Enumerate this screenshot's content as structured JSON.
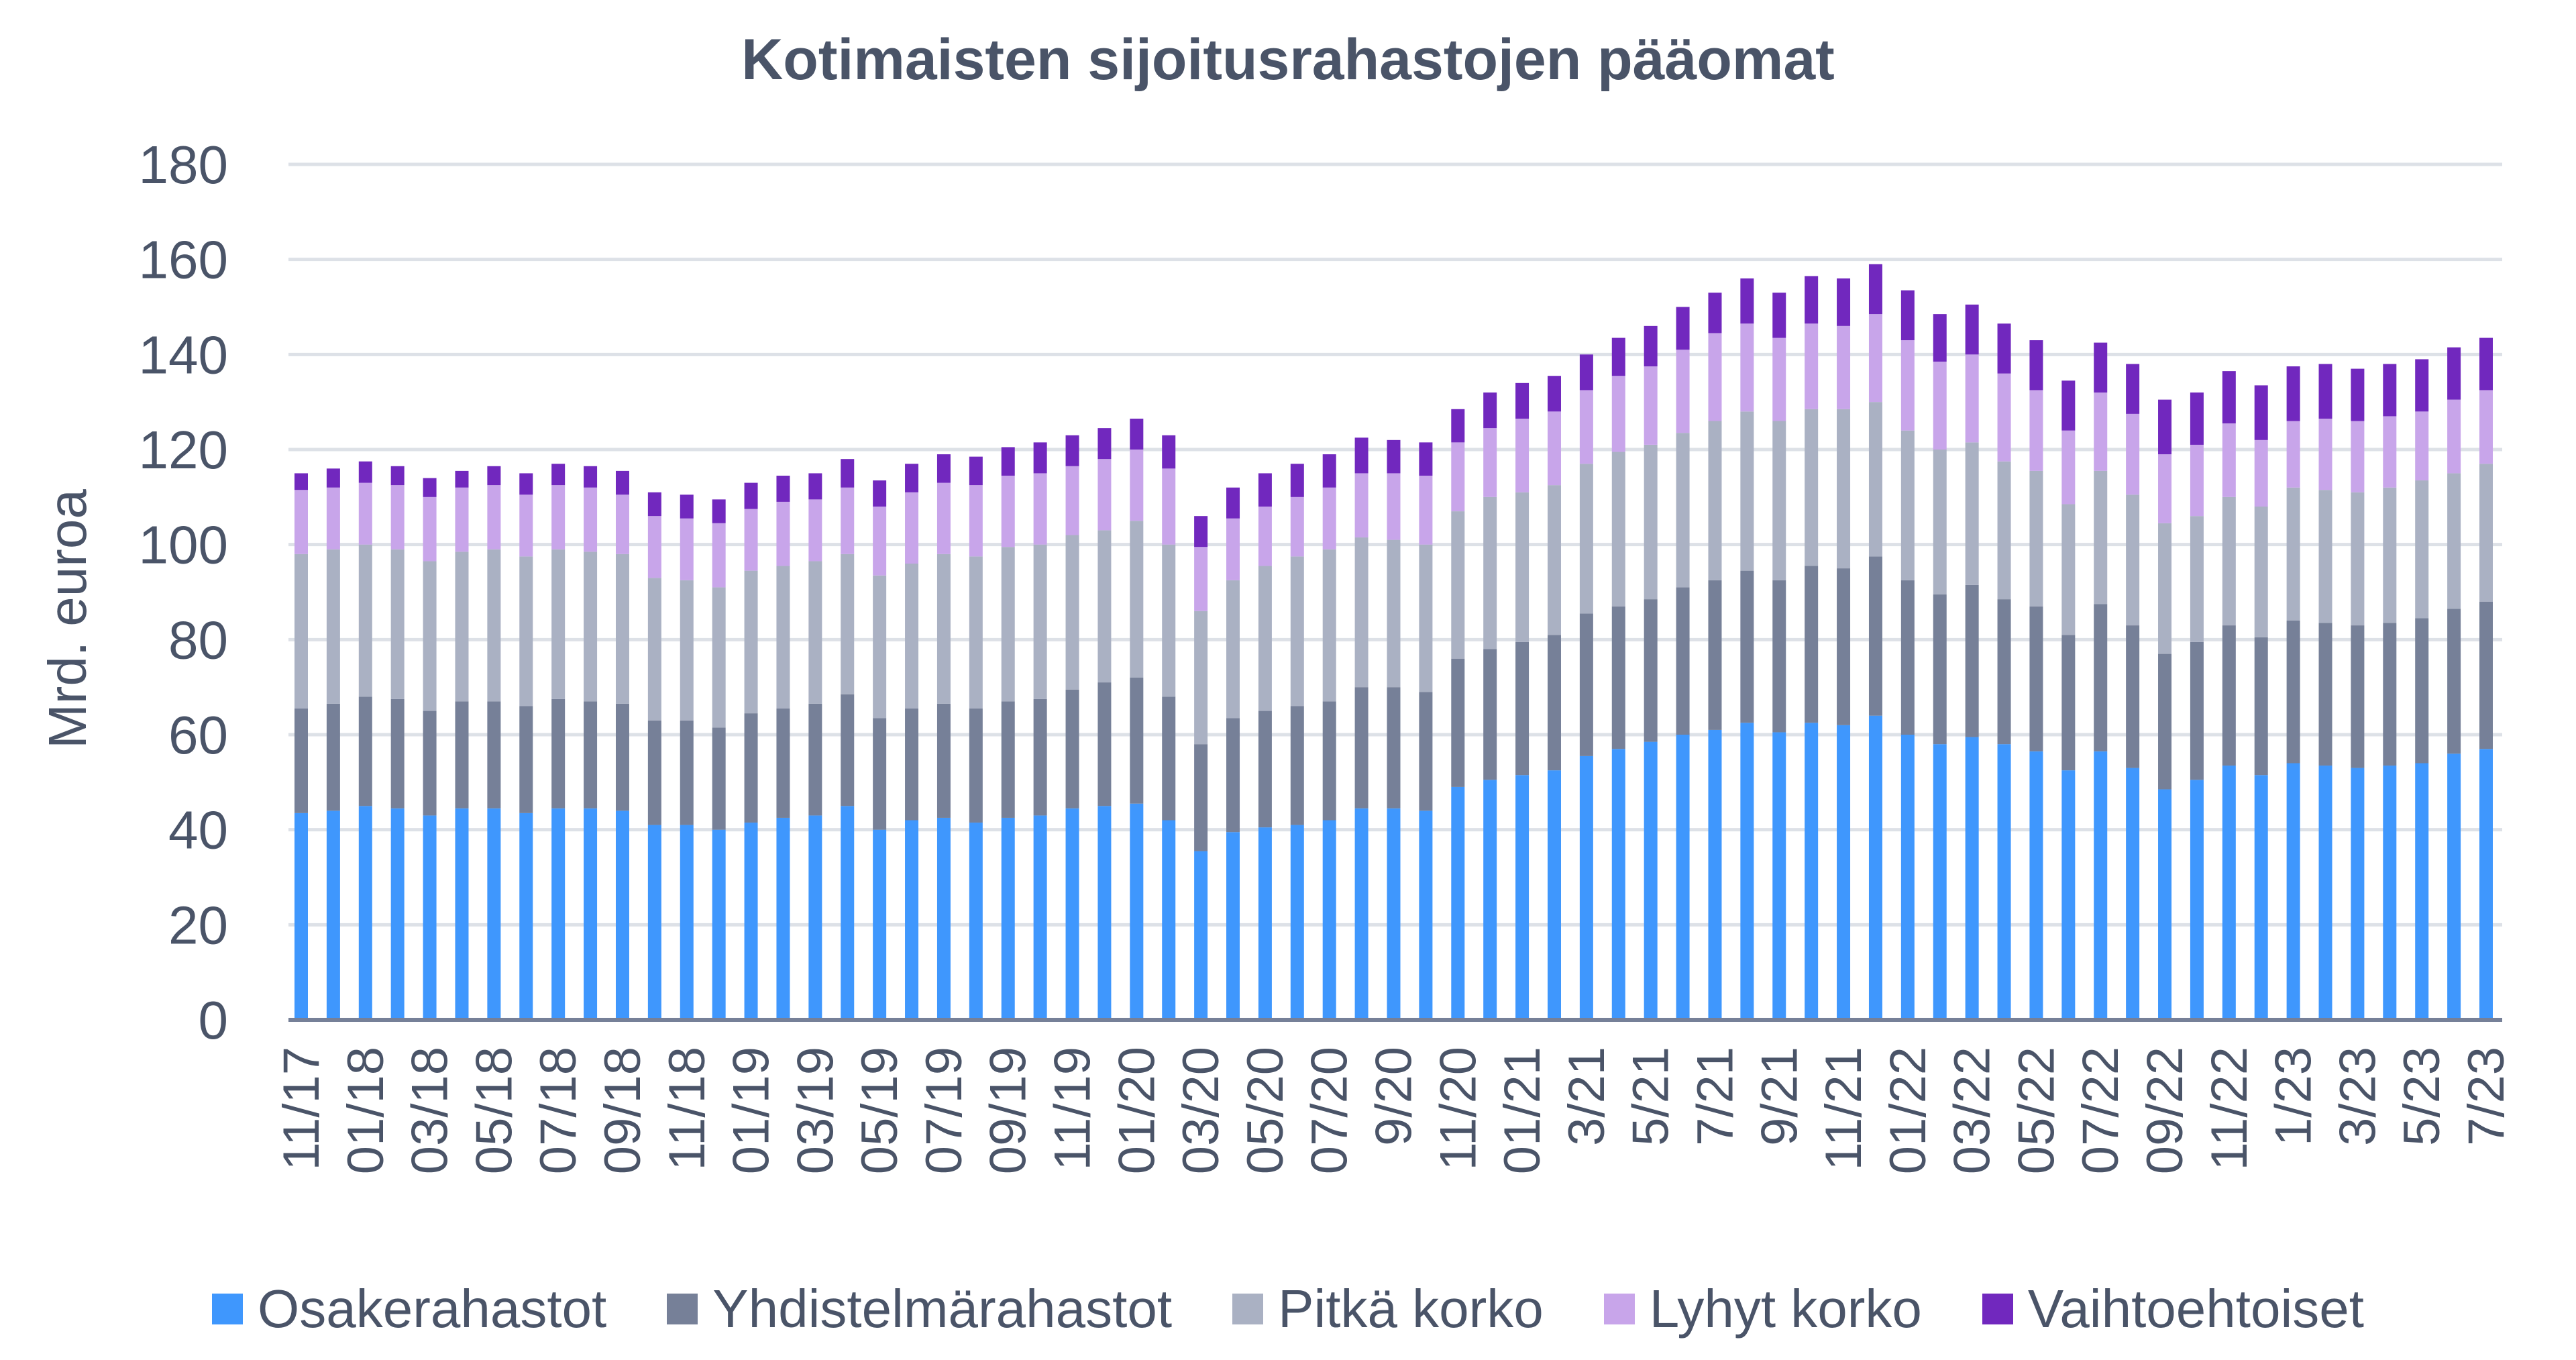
{
  "chart_data": {
    "type": "bar",
    "stacked": true,
    "title": "Kotimaisten sijoitusrahastojen pääomat",
    "xlabel": "",
    "ylabel": "Mrd. euroa",
    "ylim": [
      0,
      180
    ],
    "yticks": [
      0,
      20,
      40,
      60,
      80,
      100,
      120,
      140,
      160,
      180
    ],
    "grid": true,
    "legend_position": "bottom",
    "categories": [
      "11/17",
      "12/17",
      "01/18",
      "02/18",
      "03/18",
      "04/18",
      "05/18",
      "06/18",
      "07/18",
      "08/18",
      "09/18",
      "10/18",
      "11/18",
      "12/18",
      "01/19",
      "02/19",
      "03/19",
      "04/19",
      "05/19",
      "06/19",
      "07/19",
      "08/19",
      "09/19",
      "10/19",
      "11/19",
      "12/19",
      "01/20",
      "02/20",
      "03/20",
      "04/20",
      "05/20",
      "06/20",
      "07/20",
      "08/20",
      "9/20",
      "10/20",
      "11/20",
      "12/20",
      "01/21",
      "02/21",
      "3/21",
      "4/21",
      "5/21",
      "6/21",
      "7/21",
      "8/21",
      "9/21",
      "10/21",
      "11/21",
      "12/21",
      "01/22",
      "02/22",
      "03/22",
      "04/22",
      "05/22",
      "06/22",
      "07/22",
      "08/22",
      "09/22",
      "10/22",
      "11/22",
      "12/22",
      "1/23",
      "2/23",
      "3/23",
      "4/23",
      "5/23",
      "6/23",
      "7/23"
    ],
    "tick_labels": [
      "11/17",
      "01/18",
      "03/18",
      "05/18",
      "07/18",
      "09/18",
      "11/18",
      "01/19",
      "03/19",
      "05/19",
      "07/19",
      "09/19",
      "11/19",
      "01/20",
      "03/20",
      "05/20",
      "07/20",
      "9/20",
      "11/20",
      "01/21",
      "3/21",
      "5/21",
      "7/21",
      "9/21",
      "11/21",
      "01/22",
      "03/22",
      "05/22",
      "07/22",
      "09/22",
      "11/22",
      "1/23",
      "3/23",
      "5/23",
      "7/23"
    ],
    "series": [
      {
        "name": "Osakerahastot",
        "color": "#3f97fd",
        "values": [
          43.5,
          44,
          45,
          44.5,
          43,
          44.5,
          44.5,
          43.5,
          44.5,
          44.5,
          44,
          41,
          41,
          40,
          41.5,
          42.5,
          43,
          45,
          40,
          42,
          42.5,
          41.5,
          42.5,
          43,
          44.5,
          45,
          45.5,
          42,
          35.5,
          39.5,
          40.5,
          41,
          42,
          44.5,
          44.5,
          44,
          49,
          50.5,
          51.5,
          52.5,
          55.5,
          57,
          58.5,
          60,
          61,
          62.5,
          60.5,
          62.5,
          62,
          64,
          60,
          58,
          59.5,
          58,
          56.5,
          52.5,
          56.5,
          53,
          48.5,
          50.5,
          53.5,
          51.5,
          54,
          53.5,
          53,
          53.5,
          54,
          56,
          57
        ]
      },
      {
        "name": "Yhdistelmärahastot",
        "color": "#768098",
        "values": [
          22,
          22.5,
          23,
          23,
          22,
          22.5,
          22.5,
          22.5,
          23,
          22.5,
          22.5,
          22,
          22,
          21.5,
          23,
          23,
          23.5,
          23.5,
          23.5,
          23.5,
          24,
          24,
          24.5,
          24.5,
          25,
          26,
          26.5,
          26,
          22.5,
          24,
          24.5,
          25,
          25,
          25.5,
          25.5,
          25,
          27,
          27.5,
          28,
          28.5,
          30,
          30,
          30,
          31,
          31.5,
          32,
          32,
          33,
          33,
          33.5,
          32.5,
          31.5,
          32,
          30.5,
          30.5,
          28.5,
          31,
          30,
          28.5,
          29,
          29.5,
          29,
          30,
          30,
          30,
          30,
          30.5,
          30.5,
          31
        ]
      },
      {
        "name": "Pitkä korko",
        "color": "#aab1c3",
        "values": [
          32.5,
          32.5,
          32,
          31.5,
          31.5,
          31.5,
          32,
          31.5,
          31.5,
          31.5,
          31.5,
          30,
          29.5,
          29.5,
          30,
          30,
          30,
          29.5,
          30,
          30.5,
          31.5,
          32,
          32.5,
          32.5,
          32.5,
          32,
          33,
          32,
          28,
          29,
          30.5,
          31.5,
          32,
          31.5,
          31,
          31,
          31,
          32,
          31.5,
          31.5,
          31.5,
          32.5,
          32.5,
          32.5,
          33.5,
          33.5,
          33.5,
          33,
          33.5,
          32.5,
          31.5,
          30.5,
          30,
          29,
          28.5,
          27.5,
          28,
          27.5,
          27.5,
          26.5,
          27,
          27.5,
          28,
          28,
          28,
          28.5,
          29,
          28.5,
          29
        ]
      },
      {
        "name": "Lyhyt korko",
        "color": "#c8a5ea",
        "values": [
          13.5,
          13,
          13,
          13.5,
          13.5,
          13.5,
          13.5,
          13,
          13.5,
          13.5,
          12.5,
          13,
          13,
          13.5,
          13,
          13.5,
          13,
          14,
          14.5,
          15,
          15,
          15,
          15,
          15,
          14.5,
          15,
          15,
          16,
          13.5,
          13,
          12.5,
          12.5,
          13,
          13.5,
          14,
          14.5,
          14.5,
          14.5,
          15.5,
          15.5,
          15.5,
          16,
          16.5,
          17.5,
          18.5,
          18.5,
          17.5,
          18,
          17.5,
          18.5,
          19,
          18.5,
          18.5,
          18.5,
          17,
          15.5,
          16.5,
          17,
          14.5,
          15,
          15.5,
          14,
          14,
          15,
          15,
          15,
          14.5,
          15.5,
          15.5
        ]
      },
      {
        "name": "Vaihtoehtoiset",
        "color": "#7128be",
        "values": [
          3.5,
          4,
          4.5,
          4,
          4,
          3.5,
          4,
          4.5,
          4.5,
          4.5,
          5,
          5,
          5,
          5,
          5.5,
          5.5,
          5.5,
          6,
          5.5,
          6,
          6,
          6,
          6,
          6.5,
          6.5,
          6.5,
          6.5,
          7,
          6.5,
          6.5,
          7,
          7,
          7,
          7.5,
          7,
          7,
          7,
          7.5,
          7.5,
          7.5,
          7.5,
          8,
          8.5,
          9,
          8.5,
          9.5,
          9.5,
          10,
          10,
          10.5,
          10.5,
          10,
          10.5,
          10.5,
          10.5,
          10.5,
          10.5,
          10.5,
          11.5,
          11,
          11,
          11.5,
          11.5,
          11.5,
          11,
          11,
          11,
          11,
          11
        ]
      }
    ]
  }
}
